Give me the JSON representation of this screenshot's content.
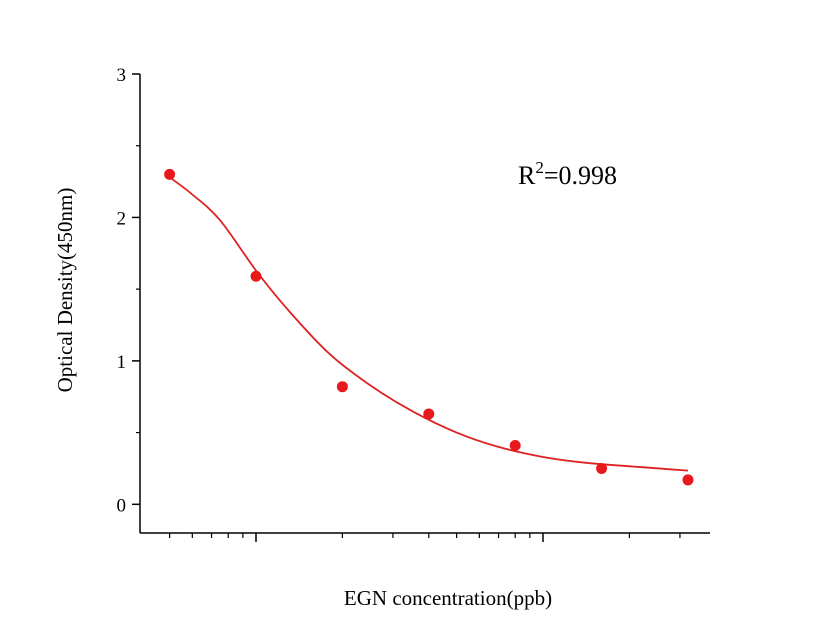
{
  "chart_data": {
    "type": "scatter",
    "title": "",
    "xlabel": "EGN concentration(ppb)",
    "ylabel": "Optical Density(450nm)",
    "x_scale": "log",
    "x_tick_labels": [],
    "y_ticks": [
      0,
      1,
      2,
      3
    ],
    "ylim": [
      -0.2,
      3
    ],
    "grid": false,
    "legend": "none",
    "annotation": {
      "text_prefix": "R",
      "superscript": "2",
      "text_suffix": "=0.998"
    },
    "series": [
      {
        "marker": "circle",
        "color": "#e8191c",
        "x": [
          0.05,
          0.1,
          0.2,
          0.4,
          0.8,
          1.6,
          3.2
        ],
        "y": [
          2.3,
          1.59,
          0.82,
          0.63,
          0.41,
          0.25,
          0.17
        ]
      },
      {
        "style": "line",
        "color": "#dd2222",
        "x": [
          0.05,
          0.06,
          0.075,
          0.1,
          0.13,
          0.18,
          0.25,
          0.35,
          0.5,
          0.7,
          1.0,
          1.4,
          2.0,
          2.6,
          3.2
        ],
        "y": [
          2.28,
          2.16,
          1.98,
          1.63,
          1.35,
          1.05,
          0.83,
          0.65,
          0.5,
          0.4,
          0.33,
          0.29,
          0.265,
          0.248,
          0.235
        ]
      }
    ]
  }
}
